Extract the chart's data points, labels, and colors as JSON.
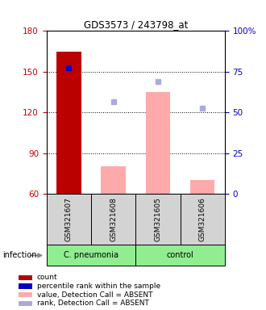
{
  "title": "GDS3573 / 243798_at",
  "samples": [
    "GSM321607",
    "GSM321608",
    "GSM321605",
    "GSM321606"
  ],
  "ylim_left": [
    60,
    180
  ],
  "ylim_right": [
    0,
    100
  ],
  "yticks_left": [
    60,
    90,
    120,
    150,
    180
  ],
  "yticks_right": [
    0,
    25,
    50,
    75,
    100
  ],
  "ytick_labels_right": [
    "0",
    "25",
    "50",
    "75",
    "100%"
  ],
  "bar_color_count": "#bb0000",
  "bar_color_absent": "#ffaaaa",
  "dot_color_rank": "#0000cc",
  "dot_color_rank_absent": "#aaaadd",
  "count_bars": [
    165,
    0,
    0,
    0
  ],
  "absent_value_bars": [
    0,
    80,
    135,
    70
  ],
  "percentile_rank_dots": [
    153,
    0,
    0,
    0
  ],
  "rank_absent_dots": [
    0,
    128,
    143,
    123
  ],
  "bar_width": 0.55,
  "infection_label": "infection",
  "legend_items": [
    {
      "color": "#bb0000",
      "label": "count"
    },
    {
      "color": "#0000cc",
      "label": "percentile rank within the sample"
    },
    {
      "color": "#ffaaaa",
      "label": "value, Detection Call = ABSENT"
    },
    {
      "color": "#aaaadd",
      "label": "rank, Detection Call = ABSENT"
    }
  ]
}
